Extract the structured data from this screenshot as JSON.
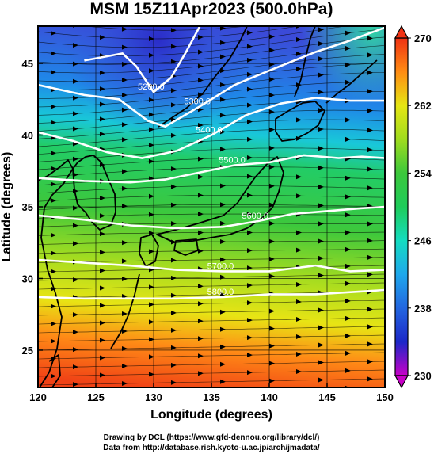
{
  "chart_data": {
    "type": "heatmap",
    "title": "MSM 15Z11Apr2023 (500.0hPa)",
    "xlabel": "Longitude (degrees)",
    "ylabel": "Latitude  (degrees)",
    "xlim": [
      120,
      150
    ],
    "ylim": [
      22.4,
      47.6
    ],
    "x_ticks": [
      120,
      125,
      130,
      135,
      140,
      145,
      150
    ],
    "y_ticks": [
      25,
      30,
      35,
      40,
      45
    ],
    "colorbar": {
      "ticks": [
        230,
        238,
        246,
        254,
        262,
        270
      ],
      "range": [
        230,
        270
      ],
      "stops": [
        {
          "v": 230,
          "color": "#c800c8"
        },
        {
          "v": 234,
          "color": "#1c28c8"
        },
        {
          "v": 238,
          "color": "#2366e0"
        },
        {
          "v": 242,
          "color": "#1ea8ec"
        },
        {
          "v": 246,
          "color": "#14dcc0"
        },
        {
          "v": 250,
          "color": "#1ecc5a"
        },
        {
          "v": 254,
          "color": "#3cc83c"
        },
        {
          "v": 258,
          "color": "#a0dc1e"
        },
        {
          "v": 262,
          "color": "#e6e614"
        },
        {
          "v": 266,
          "color": "#ff8c14"
        },
        {
          "v": 270,
          "color": "#f03214"
        }
      ]
    },
    "field_samples": [
      {
        "lon": 130,
        "lat": 46,
        "value": 234
      },
      {
        "lon": 125,
        "lat": 43,
        "value": 241
      },
      {
        "lon": 140,
        "lat": 45,
        "value": 246
      },
      {
        "lon": 148,
        "lat": 45,
        "value": 250
      },
      {
        "lon": 130,
        "lat": 38,
        "value": 251
      },
      {
        "lon": 140,
        "lat": 35,
        "value": 255
      },
      {
        "lon": 135,
        "lat": 30,
        "value": 259
      },
      {
        "lon": 130,
        "lat": 27,
        "value": 263
      },
      {
        "lon": 125,
        "lat": 24,
        "value": 267
      }
    ],
    "contours": [
      {
        "label": "5200.0",
        "points": [
          [
            124,
            45.2
          ],
          [
            126,
            45.5
          ],
          [
            127.3,
            45.7
          ],
          [
            128.5,
            44.8
          ],
          [
            130,
            43.0
          ],
          [
            131.5,
            44.0
          ],
          [
            132.8,
            45.8
          ],
          [
            134,
            47.6
          ]
        ]
      },
      {
        "label": "5300.0",
        "points": [
          [
            120,
            43.5
          ],
          [
            124,
            42.8
          ],
          [
            127,
            42.5
          ],
          [
            129.5,
            41.0
          ],
          [
            131,
            40.6
          ],
          [
            134,
            42.0
          ],
          [
            137,
            43.5
          ],
          [
            140,
            44.5
          ],
          [
            144,
            45.8
          ],
          [
            147,
            46.6
          ],
          [
            150,
            47.5
          ]
        ]
      },
      {
        "label": "5400.0",
        "points": [
          [
            120,
            40.2
          ],
          [
            123,
            39.6
          ],
          [
            126,
            38.8
          ],
          [
            129,
            38.4
          ],
          [
            132,
            38.9
          ],
          [
            135,
            40.0
          ],
          [
            138,
            41.4
          ],
          [
            141,
            42.2
          ],
          [
            144,
            42.6
          ],
          [
            147,
            42.4
          ],
          [
            150,
            42.4
          ]
        ]
      },
      {
        "label": "5500.0",
        "points": [
          [
            120,
            37.0
          ],
          [
            124,
            36.8
          ],
          [
            128,
            36.7
          ],
          [
            131,
            36.9
          ],
          [
            134,
            37.4
          ],
          [
            137,
            37.9
          ],
          [
            140,
            38.1
          ],
          [
            143,
            38.6
          ],
          [
            146,
            38.4
          ],
          [
            148,
            38.5
          ],
          [
            150,
            38.4
          ]
        ]
      },
      {
        "label": "5600.0",
        "points": [
          [
            120,
            34.4
          ],
          [
            124,
            34.1
          ],
          [
            128,
            33.7
          ],
          [
            132,
            33.5
          ],
          [
            136,
            33.6
          ],
          [
            139,
            34.0
          ],
          [
            142,
            34.5
          ],
          [
            145,
            34.7
          ],
          [
            148,
            34.9
          ],
          [
            150,
            35.0
          ]
        ]
      },
      {
        "label": "5700.0",
        "points": [
          [
            120,
            31.3
          ],
          [
            124,
            31.1
          ],
          [
            128,
            30.9
          ],
          [
            132,
            30.6
          ],
          [
            136,
            30.5
          ],
          [
            140,
            30.5
          ],
          [
            144,
            30.9
          ],
          [
            147,
            30.5
          ],
          [
            150,
            30.6
          ]
        ]
      },
      {
        "label": "5800.0",
        "points": [
          [
            120,
            28.7
          ],
          [
            124,
            28.6
          ],
          [
            128,
            28.6
          ],
          [
            132,
            28.6
          ],
          [
            136,
            28.7
          ],
          [
            140,
            28.9
          ],
          [
            144,
            28.9
          ],
          [
            148,
            29.1
          ],
          [
            150,
            29.2
          ]
        ]
      }
    ]
  },
  "credits": {
    "line1": "Drawing by DCL (https://www.gfd-dennou.org/library/dcl/)",
    "line2": "Data from http://database.rish.kyoto-u.ac.jp/arch/jmadata/"
  }
}
